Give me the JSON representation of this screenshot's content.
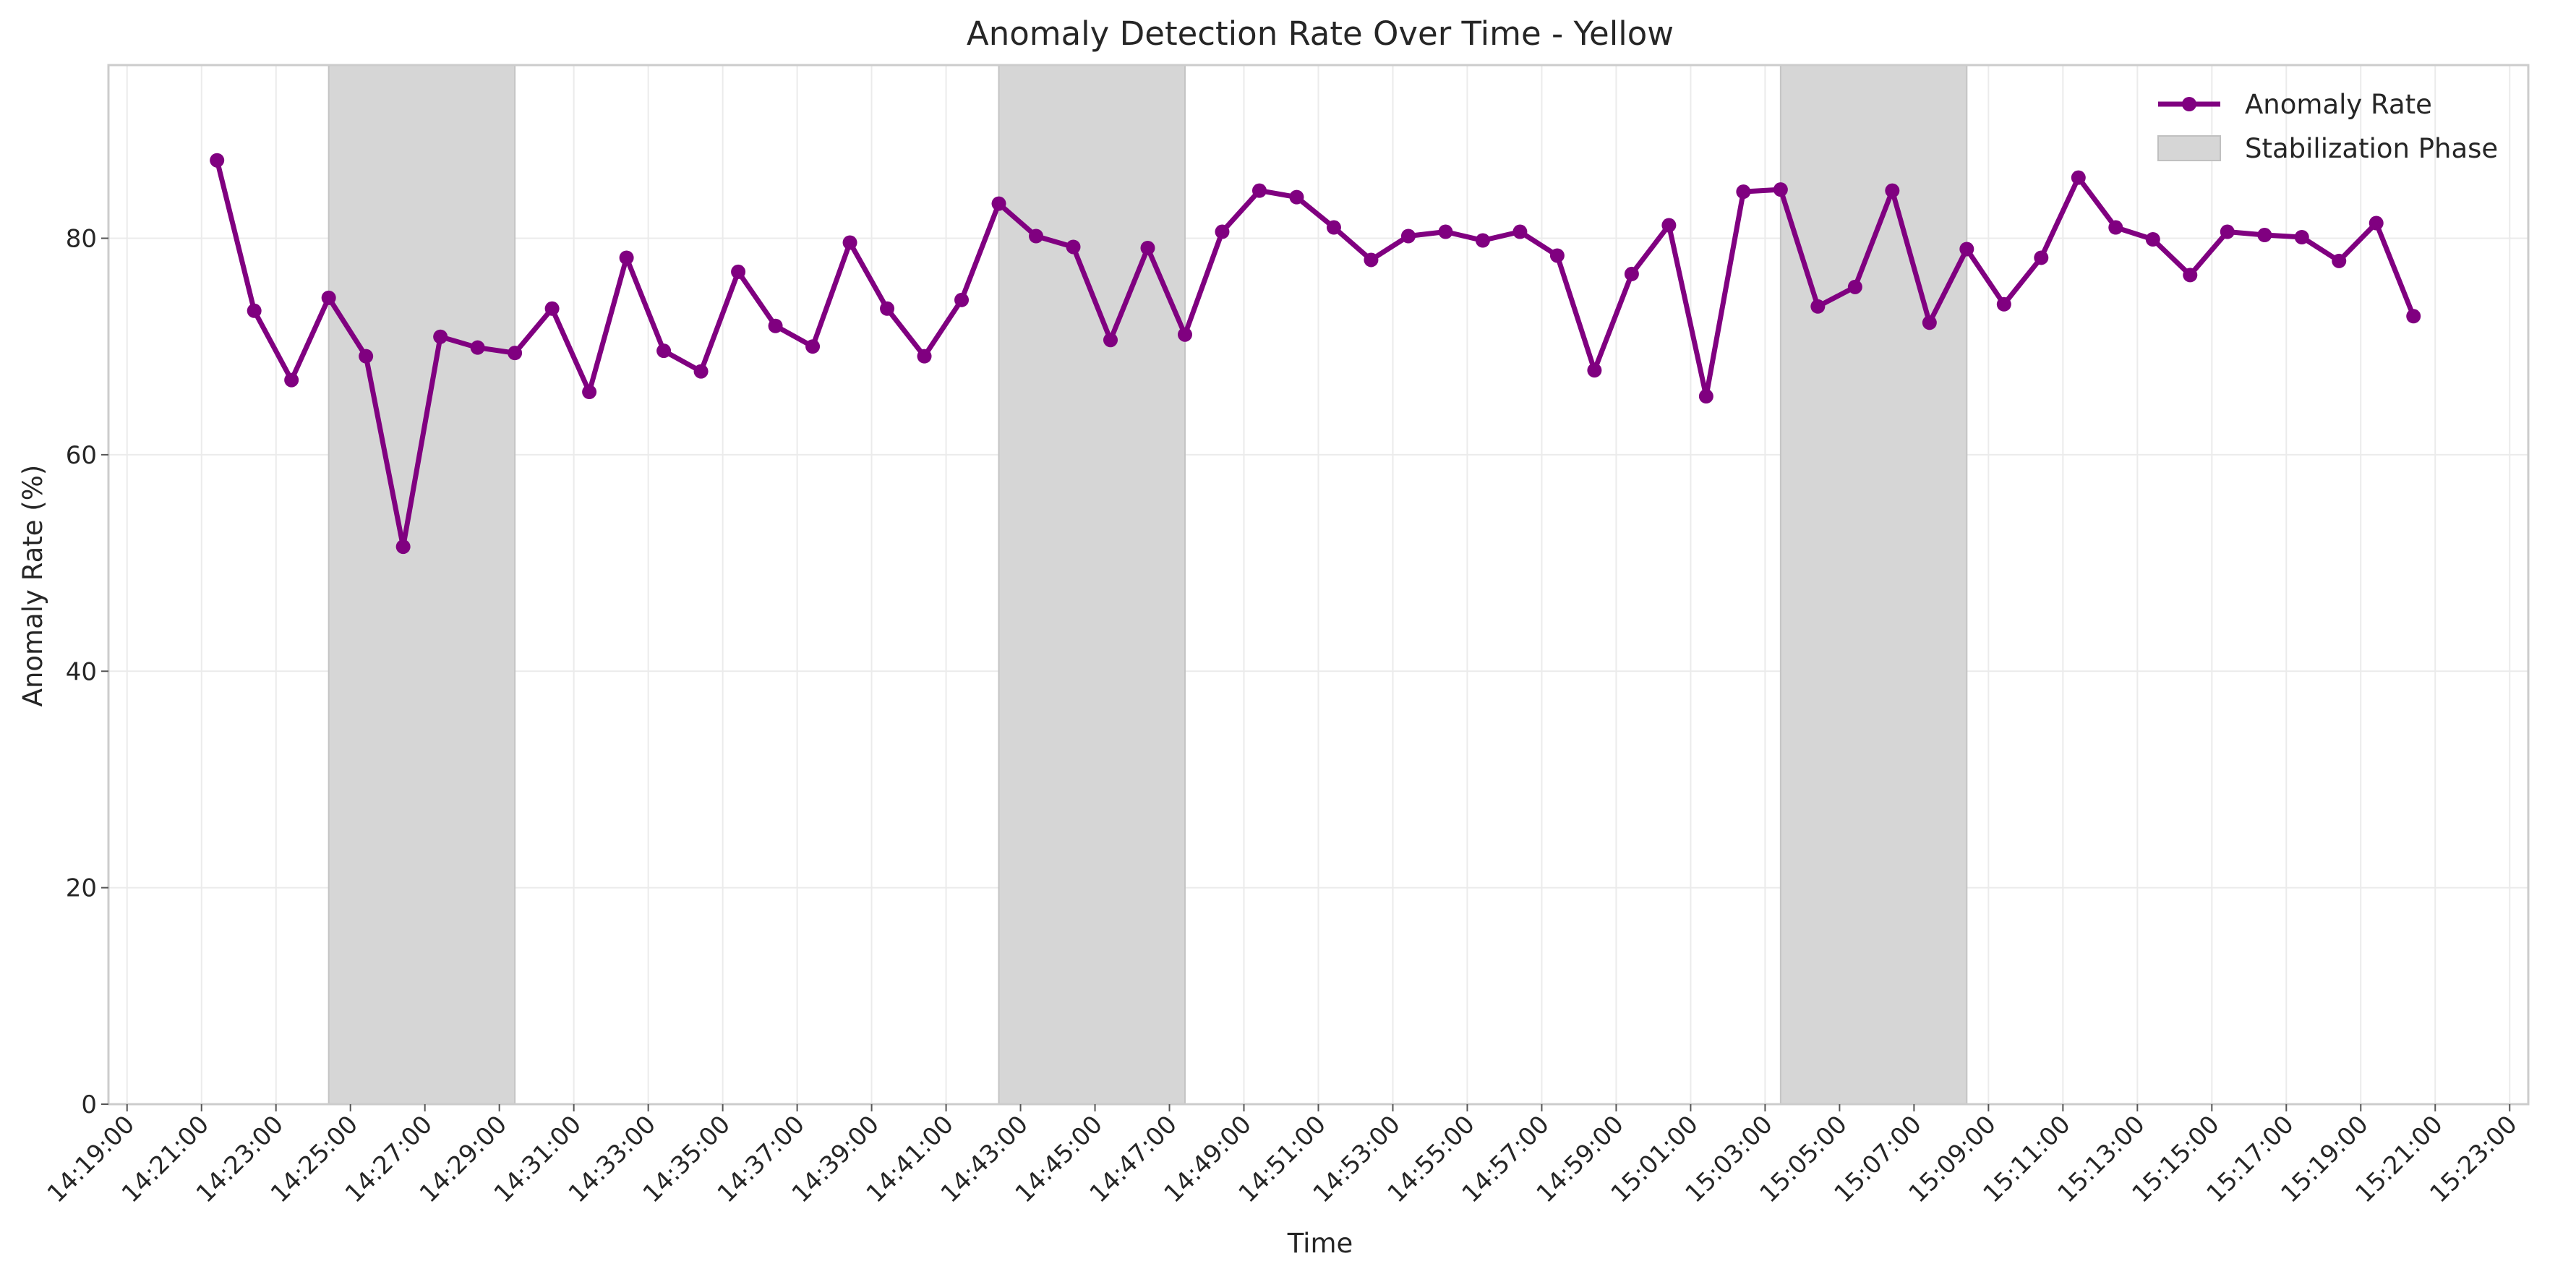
{
  "chart_data": {
    "type": "line",
    "title": "Anomaly Detection Rate Over Time - Yellow",
    "xlabel": "Time",
    "ylabel": "Anomaly Rate (%)",
    "ylim": [
      0,
      96
    ],
    "xlim_minutes": [
      "14:18:30",
      "15:23:30"
    ],
    "yticks": [
      0,
      20,
      40,
      60,
      80
    ],
    "xticks": [
      "14:19:00",
      "14:21:00",
      "14:23:00",
      "14:25:00",
      "14:27:00",
      "14:29:00",
      "14:31:00",
      "14:33:00",
      "14:35:00",
      "14:37:00",
      "14:39:00",
      "14:41:00",
      "14:43:00",
      "14:45:00",
      "14:47:00",
      "14:49:00",
      "14:51:00",
      "14:53:00",
      "14:55:00",
      "14:57:00",
      "14:59:00",
      "15:01:00",
      "15:03:00",
      "15:05:00",
      "15:07:00",
      "15:09:00",
      "15:11:00",
      "15:13:00",
      "15:15:00",
      "15:17:00",
      "15:19:00",
      "15:21:00",
      "15:23:00"
    ],
    "grid": true,
    "legend_position": "upper right",
    "series": [
      {
        "name": "Anomaly Rate",
        "color": "#800080",
        "marker": "circle",
        "x": [
          "14:21:25",
          "14:22:25",
          "14:23:25",
          "14:24:25",
          "14:25:25",
          "14:26:25",
          "14:27:25",
          "14:28:25",
          "14:29:25",
          "14:30:25",
          "14:31:25",
          "14:32:25",
          "14:33:25",
          "14:34:25",
          "14:35:25",
          "14:36:25",
          "14:37:25",
          "14:38:25",
          "14:39:25",
          "14:40:25",
          "14:41:25",
          "14:42:25",
          "14:43:25",
          "14:44:25",
          "14:45:25",
          "14:46:25",
          "14:47:25",
          "14:48:25",
          "14:49:25",
          "14:50:25",
          "14:51:25",
          "14:52:25",
          "14:53:25",
          "14:54:25",
          "14:55:25",
          "14:56:25",
          "14:57:25",
          "14:58:25",
          "14:59:25",
          "15:00:25",
          "15:01:25",
          "15:02:25",
          "15:03:25",
          "15:04:25",
          "15:05:25",
          "15:06:25",
          "15:07:25",
          "15:08:25",
          "15:09:25",
          "15:10:25",
          "15:11:25",
          "15:12:25",
          "15:13:25",
          "15:14:25",
          "15:15:25",
          "15:16:25",
          "15:17:25",
          "15:18:25",
          "15:19:25",
          "15:20:25"
        ],
        "values": [
          87.2,
          73.3,
          66.9,
          74.5,
          69.1,
          51.5,
          70.9,
          69.9,
          69.4,
          73.5,
          65.8,
          78.2,
          69.6,
          67.7,
          76.9,
          71.9,
          70.0,
          79.6,
          73.5,
          69.1,
          74.3,
          83.2,
          80.2,
          79.2,
          70.6,
          79.1,
          71.1,
          80.6,
          84.4,
          83.8,
          81.0,
          78.0,
          80.2,
          80.6,
          79.8,
          80.6,
          78.4,
          67.8,
          76.7,
          81.2,
          65.4,
          84.3,
          84.5,
          73.7,
          75.5,
          84.4,
          72.2,
          79.0,
          73.9,
          78.2,
          85.6,
          81.0,
          79.9,
          76.6,
          80.6,
          80.3,
          80.1,
          77.9,
          81.4,
          72.8
        ]
      }
    ],
    "shaded_regions": [
      {
        "name": "Stabilization Phase",
        "color": "#c8c8c8",
        "start": "14:24:25",
        "end": "14:29:25"
      },
      {
        "start": "14:42:25",
        "end": "14:47:25"
      },
      {
        "start": "15:03:25",
        "end": "15:08:25"
      }
    ]
  }
}
